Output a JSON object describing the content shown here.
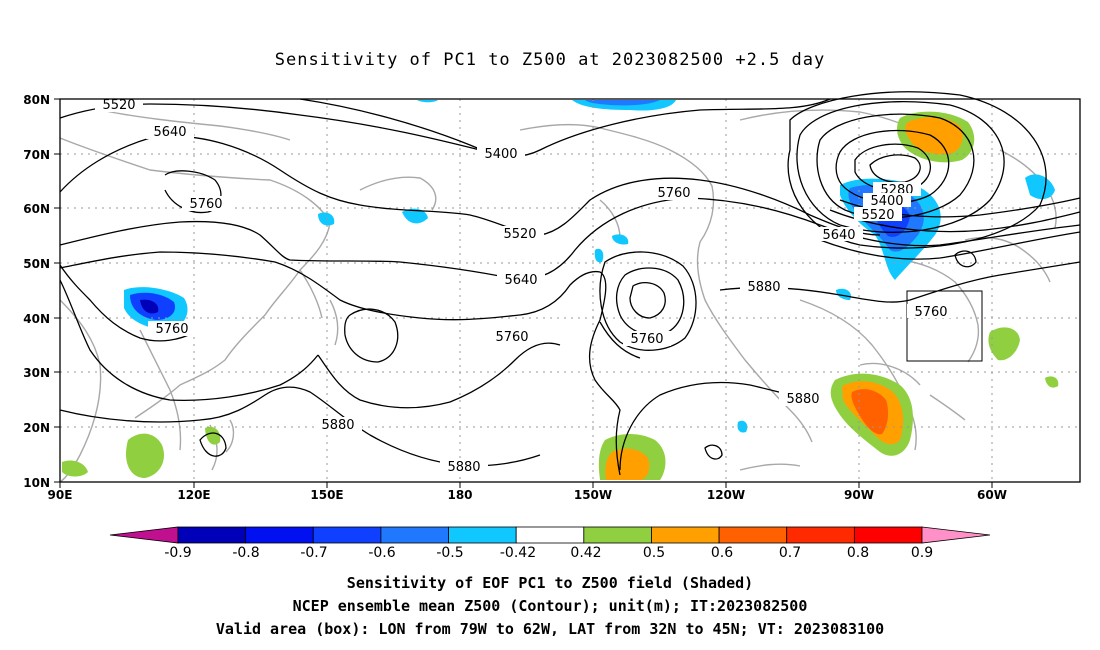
{
  "title": "Sensitivity of PC1 to Z500 at 2023082500 +2.5 day",
  "map": {
    "lon_labels": [
      "90E",
      "120E",
      "150E",
      "180",
      "150W",
      "120W",
      "90W",
      "60W"
    ],
    "lat_labels": [
      "80N",
      "70N",
      "60N",
      "50N",
      "40N",
      "30N",
      "20N",
      "10N"
    ],
    "contour_labels": [
      "5520",
      "5640",
      "5760",
      "5400",
      "5760",
      "5520",
      "5640",
      "5760",
      "5760",
      "5760",
      "5880",
      "5280",
      "5400",
      "5520",
      "5640",
      "5760",
      "5880",
      "5880",
      "5880"
    ],
    "valid_box": {
      "lon_from": "79W",
      "lon_to": "62W",
      "lat_from": "32N",
      "lat_to": "45N"
    }
  },
  "colorbar": {
    "labels": [
      "-0.9",
      "-0.8",
      "-0.7",
      "-0.6",
      "-0.5",
      "-0.42",
      "0.42",
      "0.5",
      "0.6",
      "0.7",
      "0.8",
      "0.9"
    ],
    "colors": [
      "#c01090",
      "#0000b8",
      "#0010f0",
      "#1040ff",
      "#2078ff",
      "#10c8ff",
      "#ffffff",
      "#90d040",
      "#ffa000",
      "#ff6000",
      "#ff2a00",
      "#ff0000",
      "#ff90c8"
    ]
  },
  "captions": {
    "line1": "Sensitivity of EOF PC1 to Z500 field (Shaded)",
    "line2": "NCEP ensemble mean Z500 (Contour); unit(m); IT:2023082500",
    "line3": "Valid area (box): LON from 79W to 62W, LAT from 32N to 45N; VT: 2023083100"
  }
}
